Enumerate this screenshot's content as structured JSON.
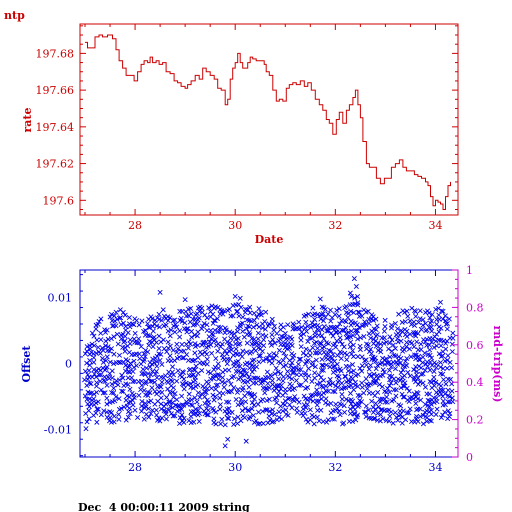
{
  "chart_data": [
    {
      "type": "line",
      "title": "ntp",
      "xlabel": "Date",
      "ylabel": "rate",
      "xlim": [
        26.9,
        34.45
      ],
      "ylim": [
        197.592,
        197.696
      ],
      "x_ticks": [
        "28",
        "30",
        "32",
        "34"
      ],
      "y_ticks": [
        "197.6",
        "197.62",
        "197.64",
        "197.66",
        "197.68"
      ],
      "color": "#cc0000",
      "series": [
        {
          "x": [
            27.0,
            27.05,
            27.12,
            27.2,
            27.28,
            27.35,
            27.45,
            27.55,
            27.62,
            27.68,
            27.75,
            27.82,
            27.9,
            27.98,
            28.05,
            28.12,
            28.18,
            28.25,
            28.3,
            28.35,
            28.42,
            28.48,
            28.55,
            28.62,
            28.7,
            28.78,
            28.85,
            28.92,
            29.0,
            29.05,
            29.12,
            29.2,
            29.28,
            29.35,
            29.42,
            29.5,
            29.58,
            29.65,
            29.72,
            29.8,
            29.85,
            29.9,
            29.95,
            30.0,
            30.05,
            30.1,
            30.15,
            30.2,
            30.25,
            30.3,
            30.35,
            30.42,
            30.5,
            30.58,
            30.62,
            30.68,
            30.75,
            30.82,
            30.88,
            30.95,
            31.02,
            31.08,
            31.15,
            31.22,
            31.3,
            31.38,
            31.45,
            31.52,
            31.6,
            31.68,
            31.75,
            31.82,
            31.88,
            31.95,
            32.02,
            32.08,
            32.15,
            32.22,
            32.28,
            32.35,
            32.4,
            32.45,
            32.5,
            32.55,
            32.62,
            32.68,
            32.75,
            32.82,
            32.9,
            32.98,
            33.05,
            33.12,
            33.2,
            33.28,
            33.35,
            33.42,
            33.5,
            33.58,
            33.65,
            33.72,
            33.8,
            33.85,
            33.9,
            33.95,
            34.0,
            34.05,
            34.1,
            34.15,
            34.2,
            34.25,
            34.3
          ],
          "y": [
            197.686,
            197.683,
            197.683,
            197.689,
            197.69,
            197.689,
            197.69,
            197.688,
            197.682,
            197.676,
            197.672,
            197.668,
            197.668,
            197.665,
            197.67,
            197.674,
            197.676,
            197.675,
            197.678,
            197.675,
            197.676,
            197.674,
            197.675,
            197.67,
            197.669,
            197.665,
            197.664,
            197.662,
            197.661,
            197.663,
            197.665,
            197.668,
            197.666,
            197.672,
            197.67,
            197.668,
            197.666,
            197.661,
            197.66,
            197.652,
            197.655,
            197.666,
            197.672,
            197.675,
            197.68,
            197.675,
            197.672,
            197.672,
            197.675,
            197.678,
            197.677,
            197.676,
            197.676,
            197.674,
            197.67,
            197.668,
            197.66,
            197.654,
            197.655,
            197.654,
            197.661,
            197.663,
            197.664,
            197.663,
            197.665,
            197.662,
            197.664,
            197.66,
            197.655,
            197.652,
            197.649,
            197.644,
            197.642,
            197.636,
            197.644,
            197.648,
            197.642,
            197.649,
            197.652,
            197.656,
            197.66,
            197.652,
            197.645,
            197.632,
            197.62,
            197.618,
            197.618,
            197.612,
            197.609,
            197.612,
            197.612,
            197.618,
            197.62,
            197.622,
            197.618,
            197.616,
            197.616,
            197.614,
            197.613,
            197.612,
            197.61,
            197.608,
            197.602,
            197.597,
            197.6,
            197.599,
            197.598,
            197.595,
            197.602,
            197.608,
            197.61
          ]
        }
      ]
    },
    {
      "type": "scatter",
      "xlabel": "",
      "ylabel": "Offset",
      "y2label": "rnd-trip(ms)",
      "xlim": [
        26.9,
        34.45
      ],
      "ylim": [
        -0.0142,
        0.0142
      ],
      "y2lim": [
        0,
        1
      ],
      "x_ticks": [
        "28",
        "30",
        "32",
        "34"
      ],
      "y_ticks": [
        "-0.01",
        "0",
        "0.01"
      ],
      "y2_ticks": [
        "0",
        "0.2",
        "0.4",
        "0.6",
        "0.8",
        "1"
      ],
      "marker": "x",
      "color": "#0000cc",
      "envelope_x": [
        27.0,
        27.1,
        27.3,
        27.5,
        27.7,
        28.0,
        28.3,
        28.5,
        28.7,
        29.0,
        29.3,
        29.5,
        29.8,
        30.0,
        30.2,
        30.5,
        30.8,
        31.0,
        31.3,
        31.6,
        31.9,
        32.2,
        32.4,
        32.6,
        32.9,
        33.2,
        33.5,
        33.8,
        34.0,
        34.2,
        34.35
      ],
      "envelope_low": [
        -0.0085,
        -0.009,
        -0.0085,
        -0.009,
        -0.0085,
        -0.008,
        -0.0085,
        -0.009,
        -0.0085,
        -0.009,
        -0.0085,
        -0.009,
        -0.0095,
        -0.009,
        -0.0085,
        -0.009,
        -0.0085,
        -0.008,
        -0.0085,
        -0.009,
        -0.0085,
        -0.009,
        -0.0085,
        -0.008,
        -0.0085,
        -0.009,
        -0.0085,
        -0.009,
        -0.0085,
        -0.008,
        -0.0085
      ],
      "envelope_high": [
        0.0015,
        0.004,
        0.007,
        0.007,
        0.008,
        0.0065,
        0.007,
        0.0085,
        0.007,
        0.008,
        0.0085,
        0.0085,
        0.008,
        0.009,
        0.0085,
        0.008,
        0.0065,
        0.0055,
        0.0065,
        0.0085,
        0.008,
        0.0085,
        0.011,
        0.008,
        0.0065,
        0.007,
        0.0085,
        0.0075,
        0.0085,
        0.0075,
        0.006
      ],
      "outliers": [
        {
          "x": 27.02,
          "y": -0.0099
        },
        {
          "x": 28.5,
          "y": 0.0108
        },
        {
          "x": 29.0,
          "y": 0.0097
        },
        {
          "x": 29.8,
          "y": -0.0125
        },
        {
          "x": 29.85,
          "y": -0.0115
        },
        {
          "x": 30.0,
          "y": 0.0102
        },
        {
          "x": 30.1,
          "y": 0.0099
        },
        {
          "x": 30.22,
          "y": -0.0118
        },
        {
          "x": 31.7,
          "y": 0.0098
        },
        {
          "x": 32.3,
          "y": 0.0107
        },
        {
          "x": 32.38,
          "y": 0.0129
        },
        {
          "x": 32.42,
          "y": 0.0117
        },
        {
          "x": 34.1,
          "y": 0.0093
        }
      ]
    }
  ],
  "footer": {
    "timestamp": "Dec  4 00:00:11 2009 string"
  }
}
